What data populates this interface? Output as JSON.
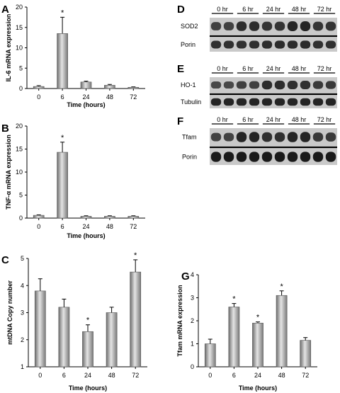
{
  "chart_data": [
    {
      "panel": "A",
      "type": "bar",
      "categories": [
        "0",
        "6",
        "24",
        "48",
        "72"
      ],
      "values": [
        0.5,
        13.5,
        1.6,
        0.8,
        0.3
      ],
      "errors": [
        0.2,
        4.0,
        0.2,
        0.2,
        0.1
      ],
      "significant": [
        false,
        true,
        false,
        false,
        false
      ],
      "ylim": [
        0,
        20
      ],
      "yticks": [
        "0",
        "5",
        "10",
        "15",
        "20"
      ],
      "xlabel": "Time (hours)",
      "ylabel": "IL-6 mRNA  expression",
      "grid": false
    },
    {
      "panel": "B",
      "type": "bar",
      "categories": [
        "0",
        "6",
        "24",
        "48",
        "72"
      ],
      "values": [
        0.6,
        14.3,
        0.4,
        0.4,
        0.4
      ],
      "errors": [
        0.1,
        2.2,
        0.1,
        0.1,
        0.1
      ],
      "significant": [
        false,
        true,
        false,
        false,
        false
      ],
      "ylim": [
        0,
        20
      ],
      "yticks": [
        "0",
        "5",
        "10",
        "15",
        "20"
      ],
      "xlabel": "Time (hours)",
      "ylabel": "TNF-α mRNA  expression",
      "grid": false
    },
    {
      "panel": "C",
      "type": "bar",
      "categories": [
        "0",
        "6",
        "24",
        "48",
        "72"
      ],
      "values": [
        3.8,
        3.2,
        2.3,
        3.0,
        4.5
      ],
      "errors": [
        0.45,
        0.3,
        0.25,
        0.2,
        0.45
      ],
      "significant": [
        false,
        false,
        true,
        false,
        true
      ],
      "ylim": [
        1,
        5
      ],
      "yticks": [
        "1",
        "2",
        "3",
        "4",
        "5"
      ],
      "xlabel": "Time (hours)",
      "ylabel": "mtDNA Copy number",
      "grid": false
    },
    {
      "panel": "G",
      "type": "bar",
      "categories": [
        "0",
        "6",
        "24",
        "48",
        "72"
      ],
      "values": [
        1.0,
        2.6,
        1.9,
        3.1,
        1.15
      ],
      "errors": [
        0.2,
        0.15,
        0.05,
        0.2,
        0.12
      ],
      "significant": [
        false,
        true,
        true,
        true,
        false
      ],
      "ylim": [
        0,
        4
      ],
      "yticks": [
        "0",
        "1",
        "2",
        "3",
        "4"
      ],
      "xlabel": "Time (hours)",
      "ylabel": "Tfam mRNA expression",
      "grid": false
    }
  ],
  "significance_marker": "*",
  "blots": [
    {
      "panel": "D",
      "lanes": [
        "0 hr",
        "6 hr",
        "24 hr",
        "48 hr",
        "72 hr"
      ],
      "rows": [
        {
          "label": "SOD2",
          "intensity": [
            0.55,
            0.75,
            0.65,
            0.8,
            0.65
          ]
        },
        {
          "label": "Porin",
          "intensity": [
            0.7,
            0.7,
            0.75,
            0.75,
            0.7
          ]
        }
      ]
    },
    {
      "panel": "E",
      "lanes": [
        "0 hr",
        "6 hr",
        "24 hr",
        "48 hr",
        "72 hr"
      ],
      "rows": [
        {
          "label": "HO-1",
          "intensity": [
            0.45,
            0.55,
            0.75,
            0.7,
            0.6
          ]
        },
        {
          "label": "Tubulin",
          "intensity": [
            0.8,
            0.8,
            0.8,
            0.8,
            0.8
          ]
        }
      ]
    },
    {
      "panel": "F",
      "lanes": [
        "0 hr",
        "6 hr",
        "24 hr",
        "48 hr",
        "72 hr"
      ],
      "rows": [
        {
          "label": "Tfam",
          "intensity": [
            0.5,
            0.8,
            0.7,
            0.8,
            0.6
          ]
        },
        {
          "label": "Porin",
          "intensity": [
            0.9,
            0.9,
            0.9,
            0.9,
            0.9
          ]
        }
      ]
    }
  ],
  "colors": {
    "bar_light": "#dcdcdc",
    "bar_dark": "#6e6e6e",
    "blot_bg": "#c9c9c9",
    "band": "#111111"
  }
}
